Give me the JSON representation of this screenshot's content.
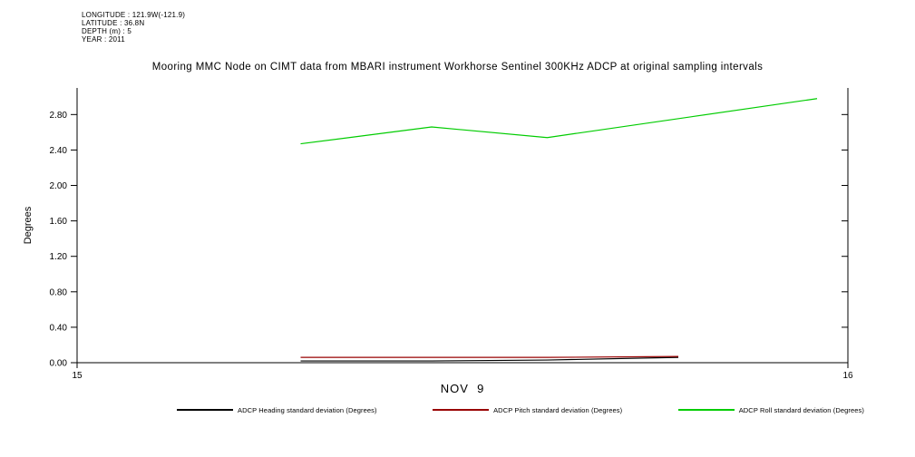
{
  "metadata": {
    "longitude": "LONGITUDE : 121.9W(-121.9)",
    "latitude": "LATITUDE : 36.8N",
    "depth": "DEPTH (m) : 5",
    "year": "YEAR : 2011"
  },
  "chart_data": {
    "type": "line",
    "title": "Mooring MMC Node on CIMT data from MBARI instrument Workhorse Sentinel 300KHz ADCP at original sampling intervals",
    "xlabel": "NOV  9",
    "ylabel": "Degrees",
    "xlim": [
      15,
      16
    ],
    "ylim": [
      0,
      3.1
    ],
    "xticks": [
      15,
      16
    ],
    "yticks": [
      0.0,
      0.4,
      0.8,
      1.2,
      1.6,
      2.0,
      2.4,
      2.8
    ],
    "grid": false,
    "legend_position": "bottom",
    "series": [
      {
        "key": "heading",
        "name": "ADCP Heading standard deviation (Degrees)",
        "color": "#000000",
        "x": [
          15.29,
          15.46,
          15.61,
          15.78
        ],
        "y": [
          0.02,
          0.02,
          0.03,
          0.06
        ]
      },
      {
        "key": "pitch",
        "name": "ADCP Pitch standard deviation (Degrees)",
        "color": "#990000",
        "x": [
          15.29,
          15.46,
          15.61,
          15.78
        ],
        "y": [
          0.06,
          0.06,
          0.06,
          0.07
        ]
      },
      {
        "key": "roll",
        "name": "ADCP Roll standard deviation (Degrees)",
        "color": "#00cc00",
        "x": [
          15.29,
          15.46,
          15.61,
          15.96
        ],
        "y": [
          2.47,
          2.66,
          2.54,
          2.98
        ]
      }
    ]
  }
}
